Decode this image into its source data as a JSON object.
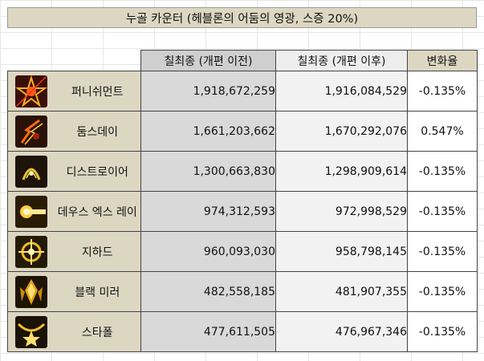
{
  "title": "누골 카운터 (헤블론의 어둠의 영광, 스증 20%)",
  "headers": {
    "before": "칠최종 (개편 이전)",
    "after": "칠최종 (개편 이후)",
    "rate": "변화율"
  },
  "rows": [
    {
      "name": "퍼니쉬먼트",
      "icon": "punishment-skill-icon",
      "before": "1,918,672,259",
      "after": "1,916,084,529",
      "rate": "-0.135%"
    },
    {
      "name": "둠스데이",
      "icon": "doomsday-skill-icon",
      "before": "1,661,203,662",
      "after": "1,670,292,076",
      "rate": "0.547%"
    },
    {
      "name": "디스트로이어",
      "icon": "destroyer-skill-icon",
      "before": "1,300,663,830",
      "after": "1,298,909,614",
      "rate": "-0.135%"
    },
    {
      "name": "데우스 엑스 레이",
      "icon": "deus-ex-ray-skill-icon",
      "before": "974,312,593",
      "after": "972,998,529",
      "rate": "-0.135%"
    },
    {
      "name": "지하드",
      "icon": "jihad-skill-icon",
      "before": "960,093,030",
      "after": "958,798,145",
      "rate": "-0.135%"
    },
    {
      "name": "블랙 미러",
      "icon": "black-mirror-skill-icon",
      "before": "482,558,185",
      "after": "481,907,355",
      "rate": "-0.135%"
    },
    {
      "name": "스타폴",
      "icon": "starfall-skill-icon",
      "before": "477,611,505",
      "after": "476,967,346",
      "rate": "-0.135%"
    }
  ]
}
